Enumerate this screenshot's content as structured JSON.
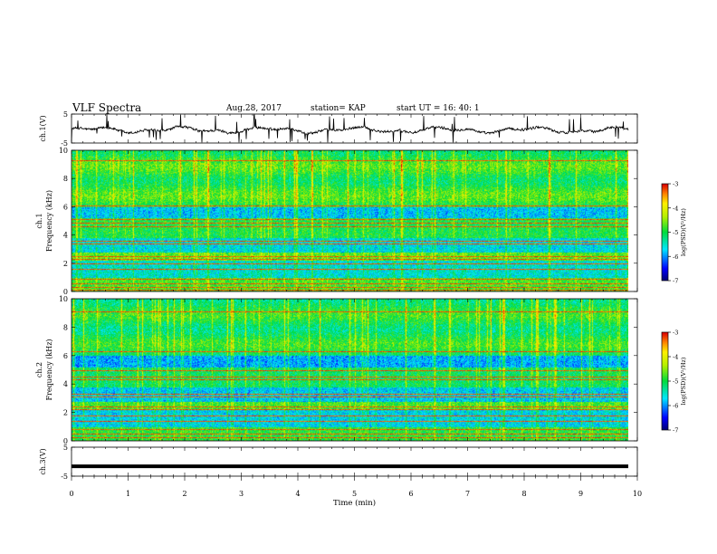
{
  "header": {
    "title": "VLF Spectra",
    "date": "Aug.28, 2017",
    "station": "station= KAP",
    "start": "start  UT =   16: 40: 1"
  },
  "chart_data": [
    {
      "type": "line",
      "panel": "ch1-waveform",
      "ylabel": "ch.1(V)",
      "ylim": [
        -5,
        5
      ],
      "y_ticks": [
        "5",
        "-5"
      ],
      "x_range": [
        0,
        10
      ],
      "note_series": "noisy waveform around -0.5 V with frequent spikes",
      "baseline": -0.5
    },
    {
      "type": "heatmap",
      "panel": "ch1-spectrogram",
      "ylabel": "ch.1\nFrequency (kHz)",
      "ylabel_top": "ch.1",
      "ylabel_bottom": "Frequency (kHz)",
      "ylim": [
        0,
        10
      ],
      "y_ticks": [
        "0",
        "2",
        "4",
        "6",
        "8",
        "10"
      ],
      "x_range": [
        0,
        9.8
      ],
      "colorbar": {
        "label": "log(PSD)(V²/Hz)",
        "range": [
          -7,
          -3
        ],
        "ticks": [
          "-3",
          "-4",
          "-5",
          "-6",
          "-7"
        ]
      }
    },
    {
      "type": "heatmap",
      "panel": "ch2-spectrogram",
      "ylabel_top": "ch.2",
      "ylabel_bottom": "Frequency (kHz)",
      "ylim": [
        0,
        10
      ],
      "y_ticks": [
        "0",
        "2",
        "4",
        "6",
        "8",
        "10"
      ],
      "x_range": [
        0,
        9.8
      ],
      "colorbar": {
        "label": "log(PSD)(V²/Hz)",
        "range": [
          -7,
          -3
        ],
        "ticks": [
          "-3",
          "-4",
          "-5",
          "-6",
          "-7"
        ]
      }
    },
    {
      "type": "line",
      "panel": "ch3-waveform",
      "ylabel": "ch.3(V)",
      "ylim": [
        -5,
        5
      ],
      "y_ticks": [
        "5",
        "-5"
      ],
      "x_range": [
        0,
        9.8
      ],
      "baseline": -1.6
    }
  ],
  "x_axis": {
    "label": "Time (min)",
    "range": [
      0,
      10
    ],
    "ticks": [
      "0",
      "1",
      "2",
      "3",
      "4",
      "5",
      "6",
      "7",
      "8",
      "9",
      "10"
    ]
  },
  "colors": {
    "axis": "#000000",
    "trace": "#000000"
  }
}
